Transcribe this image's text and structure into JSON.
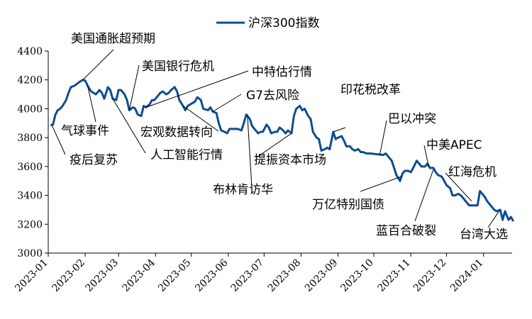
{
  "chart_data": {
    "type": "line",
    "title": "",
    "xlabel": "",
    "ylabel": "",
    "ylim": [
      3000,
      4400
    ],
    "y_ticks": [
      3000,
      3200,
      3400,
      3600,
      3800,
      4000,
      4200,
      4400
    ],
    "x_ticks": [
      "2023-01",
      "2023-02",
      "2023-03",
      "2023-04",
      "2023-05",
      "2023-06",
      "2023-07",
      "2023-08",
      "2023-09",
      "2023-10",
      "2023-11",
      "2023-12",
      "2024-01"
    ],
    "grid": false,
    "legend": "top",
    "series": [
      {
        "name": "沪深300指数",
        "color": "#0f4c8f",
        "points": [
          [
            "2023-01-03",
            3887
          ],
          [
            "2023-01-05",
            3890
          ],
          [
            "2023-01-07",
            3960
          ],
          [
            "2023-01-09",
            3990
          ],
          [
            "2023-01-11",
            4000
          ],
          [
            "2023-01-13",
            4020
          ],
          [
            "2023-01-16",
            4060
          ],
          [
            "2023-01-18",
            4110
          ],
          [
            "2023-01-20",
            4150
          ],
          [
            "2023-01-23",
            4160
          ],
          [
            "2023-01-27",
            4185
          ],
          [
            "2023-01-30",
            4200
          ],
          [
            "2023-02-01",
            4195
          ],
          [
            "2023-02-03",
            4160
          ],
          [
            "2023-02-06",
            4120
          ],
          [
            "2023-02-08",
            4110
          ],
          [
            "2023-02-10",
            4100
          ],
          [
            "2023-02-13",
            4130
          ],
          [
            "2023-02-15",
            4110
          ],
          [
            "2023-02-17",
            4070
          ],
          [
            "2023-02-20",
            4150
          ],
          [
            "2023-02-22",
            4130
          ],
          [
            "2023-02-24",
            4070
          ],
          [
            "2023-02-27",
            4060
          ],
          [
            "2023-03-01",
            4130
          ],
          [
            "2023-03-03",
            4130
          ],
          [
            "2023-03-06",
            4100
          ],
          [
            "2023-03-08",
            4060
          ],
          [
            "2023-03-10",
            3990
          ],
          [
            "2023-03-13",
            4010
          ],
          [
            "2023-03-15",
            4000
          ],
          [
            "2023-03-17",
            3960
          ],
          [
            "2023-03-20",
            3950
          ],
          [
            "2023-03-22",
            4020
          ],
          [
            "2023-03-24",
            4010
          ],
          [
            "2023-03-27",
            4030
          ],
          [
            "2023-03-29",
            4060
          ],
          [
            "2023-03-31",
            4060
          ],
          [
            "2023-04-03",
            4090
          ],
          [
            "2023-04-05",
            4110
          ],
          [
            "2023-04-07",
            4120
          ],
          [
            "2023-04-10",
            4100
          ],
          [
            "2023-04-12",
            4110
          ],
          [
            "2023-04-14",
            4130
          ],
          [
            "2023-04-17",
            4150
          ],
          [
            "2023-04-19",
            4120
          ],
          [
            "2023-04-21",
            4060
          ],
          [
            "2023-04-24",
            4020
          ],
          [
            "2023-04-26",
            3990
          ],
          [
            "2023-04-28",
            4020
          ],
          [
            "2023-05-04",
            4050
          ],
          [
            "2023-05-06",
            4080
          ],
          [
            "2023-05-09",
            4060
          ],
          [
            "2023-05-11",
            4000
          ],
          [
            "2023-05-15",
            3990
          ],
          [
            "2023-05-17",
            4010
          ],
          [
            "2023-05-19",
            3980
          ],
          [
            "2023-05-22",
            3970
          ],
          [
            "2023-05-24",
            3900
          ],
          [
            "2023-05-26",
            3850
          ],
          [
            "2023-05-29",
            3840
          ],
          [
            "2023-05-31",
            3830
          ],
          [
            "2023-06-02",
            3860
          ],
          [
            "2023-06-05",
            3860
          ],
          [
            "2023-06-07",
            3860
          ],
          [
            "2023-06-09",
            3860
          ],
          [
            "2023-06-12",
            3850
          ],
          [
            "2023-06-14",
            3900
          ],
          [
            "2023-06-16",
            3960
          ],
          [
            "2023-06-19",
            3930
          ],
          [
            "2023-06-21",
            3880
          ],
          [
            "2023-06-26",
            3830
          ],
          [
            "2023-06-28",
            3840
          ],
          [
            "2023-06-30",
            3840
          ],
          [
            "2023-07-03",
            3890
          ],
          [
            "2023-07-05",
            3870
          ],
          [
            "2023-07-07",
            3830
          ],
          [
            "2023-07-10",
            3840
          ],
          [
            "2023-07-12",
            3840
          ],
          [
            "2023-07-14",
            3870
          ],
          [
            "2023-07-17",
            3850
          ],
          [
            "2023-07-19",
            3830
          ],
          [
            "2023-07-21",
            3850
          ],
          [
            "2023-07-24",
            3830
          ],
          [
            "2023-07-26",
            3950
          ],
          [
            "2023-07-28",
            4000
          ],
          [
            "2023-07-31",
            4020
          ],
          [
            "2023-08-02",
            3990
          ],
          [
            "2023-08-04",
            4000
          ],
          [
            "2023-08-07",
            3950
          ],
          [
            "2023-08-09",
            3930
          ],
          [
            "2023-08-11",
            3840
          ],
          [
            "2023-08-14",
            3800
          ],
          [
            "2023-08-16",
            3790
          ],
          [
            "2023-08-18",
            3710
          ],
          [
            "2023-08-21",
            3720
          ],
          [
            "2023-08-23",
            3730
          ],
          [
            "2023-08-25",
            3720
          ],
          [
            "2023-08-28",
            3840
          ],
          [
            "2023-08-30",
            3790
          ],
          [
            "2023-09-01",
            3800
          ],
          [
            "2023-09-04",
            3810
          ],
          [
            "2023-09-06",
            3780
          ],
          [
            "2023-09-08",
            3740
          ],
          [
            "2023-09-11",
            3740
          ],
          [
            "2023-09-13",
            3720
          ],
          [
            "2023-09-15",
            3710
          ],
          [
            "2023-09-18",
            3720
          ],
          [
            "2023-09-20",
            3700
          ],
          [
            "2023-09-22",
            3700
          ],
          [
            "2023-09-25",
            3690
          ],
          [
            "2023-09-28",
            3690
          ],
          [
            "2023-10-09",
            3680
          ],
          [
            "2023-10-11",
            3690
          ],
          [
            "2023-10-13",
            3670
          ],
          [
            "2023-10-16",
            3640
          ],
          [
            "2023-10-18",
            3590
          ],
          [
            "2023-10-20",
            3540
          ],
          [
            "2023-10-23",
            3500
          ],
          [
            "2023-10-25",
            3550
          ],
          [
            "2023-10-27",
            3570
          ],
          [
            "2023-10-30",
            3570
          ],
          [
            "2023-11-01",
            3560
          ],
          [
            "2023-11-03",
            3590
          ],
          [
            "2023-11-06",
            3640
          ],
          [
            "2023-11-08",
            3620
          ],
          [
            "2023-11-10",
            3600
          ],
          [
            "2023-11-13",
            3600
          ],
          [
            "2023-11-15",
            3620
          ],
          [
            "2023-11-17",
            3590
          ],
          [
            "2023-11-20",
            3590
          ],
          [
            "2023-11-22",
            3560
          ],
          [
            "2023-11-24",
            3540
          ],
          [
            "2023-11-27",
            3530
          ],
          [
            "2023-11-29",
            3500
          ],
          [
            "2023-12-01",
            3470
          ],
          [
            "2023-12-04",
            3450
          ],
          [
            "2023-12-06",
            3400
          ],
          [
            "2023-12-08",
            3400
          ],
          [
            "2023-12-11",
            3410
          ],
          [
            "2023-12-13",
            3400
          ],
          [
            "2023-12-15",
            3380
          ],
          [
            "2023-12-18",
            3350
          ],
          [
            "2023-12-20",
            3330
          ],
          [
            "2023-12-22",
            3330
          ],
          [
            "2023-12-25",
            3330
          ],
          [
            "2023-12-27",
            3330
          ],
          [
            "2023-12-29",
            3430
          ],
          [
            "2024-01-02",
            3390
          ],
          [
            "2024-01-04",
            3360
          ],
          [
            "2024-01-08",
            3320
          ],
          [
            "2024-01-10",
            3300
          ],
          [
            "2024-01-12",
            3290
          ],
          [
            "2024-01-15",
            3300
          ],
          [
            "2024-01-17",
            3230
          ],
          [
            "2024-01-19",
            3290
          ],
          [
            "2024-01-22",
            3230
          ],
          [
            "2024-01-24",
            3250
          ],
          [
            "2024-01-26",
            3220
          ]
        ]
      }
    ],
    "annotations": [
      {
        "text": "美国通胀超预期",
        "date": "2023-01-30",
        "value": 4200
      },
      {
        "text": "气球事件",
        "date": "2023-02-03",
        "value": 4160
      },
      {
        "text": "疫后复苏",
        "date": "2023-01-04",
        "value": 3887
      },
      {
        "text": "美国银行危机",
        "date": "2023-03-10",
        "value": 3990
      },
      {
        "text": "人工智能行情",
        "date": "2023-02-24",
        "value": 4070
      },
      {
        "text": "中特估行情",
        "date": "2023-03-24",
        "value": 4010
      },
      {
        "text": "宏观数据转向",
        "date": "2023-04-24",
        "value": 4020
      },
      {
        "text": "G7去风险",
        "date": "2023-05-19",
        "value": 3980
      },
      {
        "text": "布林肯访华",
        "date": "2023-06-17",
        "value": 3960
      },
      {
        "text": "提振资本市场",
        "date": "2023-07-24",
        "value": 3830
      },
      {
        "text": "印花税改革",
        "date": "2023-08-28",
        "value": 3840
      },
      {
        "text": "巴以冲突",
        "date": "2023-10-06",
        "value": 3680
      },
      {
        "text": "万亿特别国债",
        "date": "2023-10-24",
        "value": 3530
      },
      {
        "text": "中美APEC",
        "date": "2023-11-16",
        "value": 3600
      },
      {
        "text": "蓝百合破裂",
        "date": "2023-11-20",
        "value": 3580
      },
      {
        "text": "红海危机",
        "date": "2023-12-22",
        "value": 3360
      },
      {
        "text": "台湾大选",
        "date": "2024-01-14",
        "value": 3290
      }
    ]
  }
}
